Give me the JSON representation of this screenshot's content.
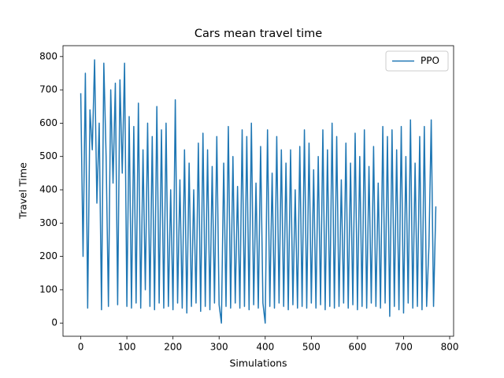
{
  "chart_data": {
    "type": "line",
    "title": "Cars mean travel time",
    "x_label": "Simulations",
    "y_label": "Travel Time",
    "x": [
      0,
      5,
      10,
      15,
      20,
      25,
      30,
      35,
      40,
      45,
      50,
      55,
      60,
      65,
      70,
      75,
      80,
      85,
      90,
      95,
      100,
      105,
      110,
      115,
      120,
      125,
      130,
      135,
      140,
      145,
      150,
      155,
      160,
      165,
      170,
      175,
      180,
      185,
      190,
      195,
      200,
      205,
      210,
      215,
      220,
      225,
      230,
      235,
      240,
      245,
      250,
      255,
      260,
      265,
      270,
      275,
      280,
      285,
      290,
      295,
      300,
      305,
      310,
      315,
      320,
      325,
      330,
      335,
      340,
      345,
      350,
      355,
      360,
      365,
      370,
      375,
      380,
      385,
      390,
      395,
      400,
      405,
      410,
      415,
      420,
      425,
      430,
      435,
      440,
      445,
      450,
      455,
      460,
      465,
      470,
      475,
      480,
      485,
      490,
      495,
      500,
      505,
      510,
      515,
      520,
      525,
      530,
      535,
      540,
      545,
      550,
      555,
      560,
      565,
      570,
      575,
      580,
      585,
      590,
      595,
      600,
      605,
      610,
      615,
      620,
      625,
      630,
      635,
      640,
      645,
      650,
      655,
      660,
      665,
      670,
      675,
      680,
      685,
      690,
      695,
      700,
      705,
      710,
      715,
      720,
      725,
      730,
      735,
      740,
      745,
      750,
      755,
      760,
      765,
      770
    ],
    "series": [
      {
        "name": "PPO",
        "color": "#1f77b4",
        "values": [
          690,
          200,
          750,
          45,
          640,
          520,
          790,
          360,
          600,
          40,
          780,
          500,
          50,
          700,
          420,
          720,
          55,
          730,
          450,
          780,
          50,
          620,
          45,
          590,
          60,
          660,
          45,
          520,
          100,
          600,
          50,
          560,
          40,
          650,
          60,
          580,
          45,
          600,
          50,
          400,
          40,
          670,
          60,
          430,
          45,
          520,
          30,
          480,
          50,
          400,
          60,
          540,
          35,
          570,
          50,
          520,
          40,
          470,
          60,
          560,
          55,
          0,
          480,
          50,
          590,
          45,
          500,
          60,
          410,
          45,
          580,
          50,
          560,
          40,
          600,
          55,
          420,
          45,
          530,
          60,
          0,
          580,
          50,
          450,
          45,
          560,
          60,
          520,
          50,
          480,
          40,
          520,
          55,
          400,
          45,
          530,
          50,
          580,
          45,
          540,
          60,
          460,
          45,
          500,
          55,
          580,
          40,
          520,
          50,
          600,
          45,
          560,
          50,
          430,
          60,
          540,
          45,
          480,
          55,
          570,
          40,
          500,
          50,
          580,
          45,
          470,
          60,
          530,
          50,
          420,
          45,
          590,
          60,
          560,
          20,
          580,
          50,
          520,
          40,
          590,
          30,
          500,
          60,
          610,
          45,
          480,
          50,
          560,
          40,
          590,
          50,
          230,
          610,
          50,
          350
        ]
      }
    ],
    "xlim": [
      -38.5,
      808.5
    ],
    "ylim": [
      -39.65,
      832.65
    ],
    "xticks": [
      0,
      100,
      200,
      300,
      400,
      500,
      600,
      700,
      800
    ],
    "yticks": [
      0,
      100,
      200,
      300,
      400,
      500,
      600,
      700,
      800
    ],
    "grid": false,
    "legend": "upper right"
  }
}
